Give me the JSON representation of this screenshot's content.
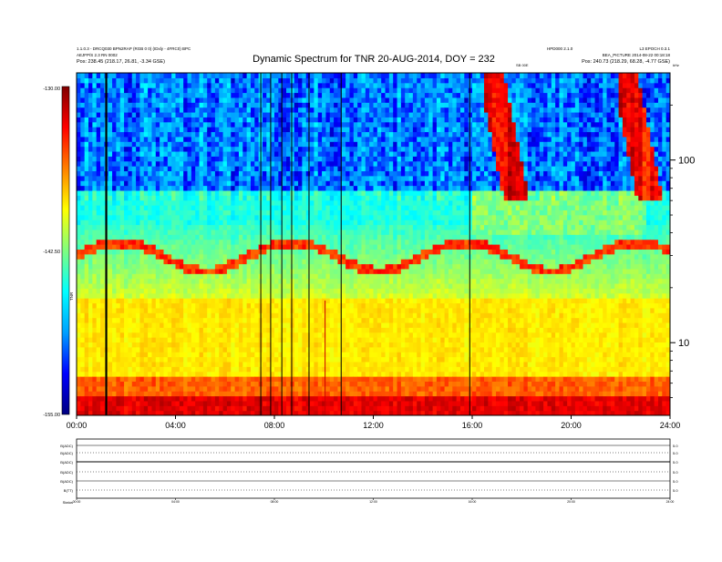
{
  "header": {
    "left_line1": "1.1.0.3 - DRCQ030 BPN2RAP (RGB 0 0) (IDxly - 4FRC0) BPC",
    "left_line2": "AEJFP/S 2.3 RN 0002",
    "left_line3": "Pos:  238.45 (218.17, 26.81, -3.34 GSE)",
    "right_line1": "HPD000 2.1.0",
    "right_line2": "L3 EPOCH 0.3.1",
    "right_line3": "BEA_PICTURE 2014-08-22 00:18:18",
    "right_line4": "Pos:  240.73 (218.29, 68.28, -4.77 GSE)",
    "mid_tag": "SB 00E",
    "corner_tag": "kHz"
  },
  "colors": {
    "frame": "#000000",
    "colorbar_stops": [
      "#000080",
      "#0000ff",
      "#00a0ff",
      "#00ffff",
      "#7fff7f",
      "#ffff00",
      "#ff8000",
      "#ff0000",
      "#800000"
    ],
    "event_line": "#000000",
    "spike": "#cc0000"
  },
  "chart_data": {
    "type": "heatmap",
    "title": "Dynamic Spectrum for TNR 20-AUG-2014, DOY = 232",
    "xlabel": "",
    "ylabel": "",
    "colorbar_label": "TNR",
    "x_ticks": [
      "00:00",
      "04:00",
      "08:00",
      "12:00",
      "16:00",
      "20:00",
      "24:00"
    ],
    "x_range_hours": [
      0,
      24
    ],
    "y_scale": "log",
    "y_range_khz": [
      4,
      300
    ],
    "y_ticks": [
      "100",
      "10"
    ],
    "colorbar_ticks": [
      "-130.00",
      "-142.50",
      "-155.00"
    ],
    "colorbar_range": [
      -155,
      -130
    ],
    "event_lines_hours": [
      1.2,
      7.45,
      7.85,
      8.3,
      8.7,
      9.4,
      10.7,
      15.9
    ],
    "spike_hour": 10.05,
    "type_iii_bursts": [
      {
        "start_hour": 16.5,
        "end_hour": 18.2,
        "top_khz": 250,
        "bottom_khz": 60
      },
      {
        "start_hour": 21.9,
        "end_hour": 23.6,
        "top_khz": 250,
        "bottom_khz": 60
      }
    ],
    "plasma_line_khz": 30,
    "bottom_panel": {
      "row_labels": [
        "B(ADC)",
        "B(ADC)",
        "B(ADC)",
        "B(ADC)",
        "B(ADC)",
        "B(TT)",
        "Status"
      ],
      "right_values": [
        "5.0",
        "5.0",
        "5.0",
        "5.0",
        "5.0",
        "5.0"
      ],
      "x_ticks": [
        "00:00",
        "04:00",
        "08:00",
        "12:00",
        "16:00",
        "20:00",
        "24:00"
      ]
    }
  }
}
